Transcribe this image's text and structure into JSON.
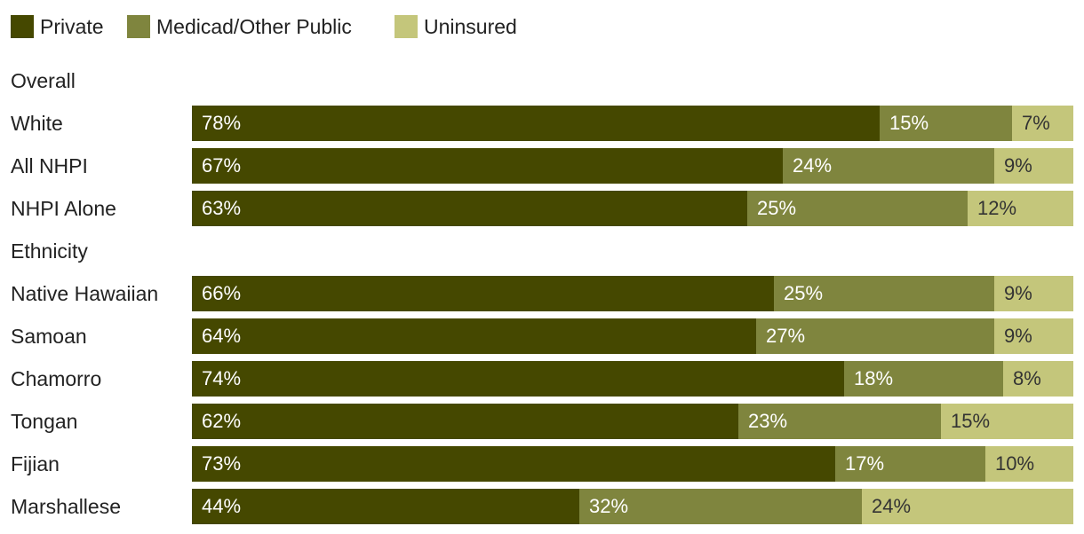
{
  "chart_data": {
    "type": "bar",
    "orientation": "horizontal",
    "stacked": true,
    "normalized_to_100": true,
    "title": "",
    "xlabel": "",
    "ylabel": "",
    "xlim": [
      0,
      100
    ],
    "legend": {
      "placement": "top-left",
      "items": [
        {
          "name": "Private",
          "color": "#454800"
        },
        {
          "name": "Medicad/Other Public",
          "color": "#7f853e"
        },
        {
          "name": "Uninsured",
          "color": "#c4c67b"
        }
      ]
    },
    "series": [
      {
        "name": "Private",
        "color": "#454800",
        "label_color": "#ffffff"
      },
      {
        "name": "Medicad/Other Public",
        "color": "#7f853e",
        "label_color": "#ffffff"
      },
      {
        "name": "Uninsured",
        "color": "#c4c67b",
        "label_color": "#333333"
      }
    ],
    "rows": [
      {
        "kind": "group",
        "label": "Overall"
      },
      {
        "kind": "bar",
        "label": "White",
        "values": [
          78,
          15,
          7
        ],
        "value_labels": [
          "78%",
          "15%",
          "7%"
        ]
      },
      {
        "kind": "bar",
        "label": "All NHPI",
        "values": [
          67,
          24,
          9
        ],
        "value_labels": [
          "67%",
          "24%",
          "9%"
        ]
      },
      {
        "kind": "bar",
        "label": "NHPI Alone",
        "values": [
          63,
          25,
          12
        ],
        "value_labels": [
          "63%",
          "25%",
          "12%"
        ]
      },
      {
        "kind": "group",
        "label": "Ethnicity"
      },
      {
        "kind": "bar",
        "label": "Native Hawaiian",
        "values": [
          66,
          25,
          9
        ],
        "value_labels": [
          "66%",
          "25%",
          "9%"
        ]
      },
      {
        "kind": "bar",
        "label": "Samoan",
        "values": [
          64,
          27,
          9
        ],
        "value_labels": [
          "64%",
          "27%",
          "9%"
        ]
      },
      {
        "kind": "bar",
        "label": "Chamorro",
        "values": [
          74,
          18,
          8
        ],
        "value_labels": [
          "74%",
          "18%",
          "8%"
        ]
      },
      {
        "kind": "bar",
        "label": "Tongan",
        "values": [
          62,
          23,
          15
        ],
        "value_labels": [
          "62%",
          "23%",
          "15%"
        ]
      },
      {
        "kind": "bar",
        "label": "Fijian",
        "values": [
          73,
          17,
          10
        ],
        "value_labels": [
          "73%",
          "17%",
          "10%"
        ]
      },
      {
        "kind": "bar",
        "label": "Marshallese",
        "values": [
          44,
          32,
          24
        ],
        "value_labels": [
          "44%",
          "32%",
          "24%"
        ]
      }
    ]
  }
}
